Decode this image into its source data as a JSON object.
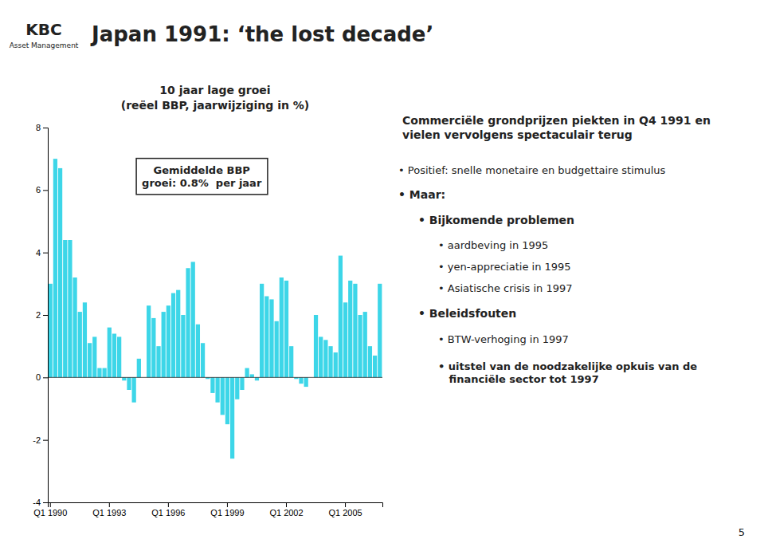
{
  "chart_data": {
    "type": "bar",
    "title": "Japan 1991: ‘the lost decade’",
    "subtitle": [
      "10 jaar lage groei",
      "(reëel BBP, jaarwijziging in %)"
    ],
    "categories": [
      "Q1 1990",
      null,
      null,
      null,
      null,
      null,
      null,
      null,
      null,
      null,
      null,
      null,
      "Q1 1993",
      null,
      null,
      null,
      null,
      null,
      null,
      null,
      null,
      null,
      null,
      null,
      "Q1 1996",
      null,
      null,
      null,
      null,
      null,
      null,
      null,
      null,
      null,
      null,
      null,
      "Q1 1999",
      null,
      null,
      null,
      null,
      null,
      null,
      null,
      null,
      null,
      null,
      null,
      "Q1 2002",
      null,
      null,
      null,
      null,
      null,
      null,
      null,
      null,
      null,
      null,
      null,
      "Q1 2005",
      null,
      null,
      null,
      null,
      null,
      null,
      null
    ],
    "values": [
      3.0,
      7.0,
      6.7,
      4.4,
      4.4,
      3.2,
      2.1,
      2.4,
      1.1,
      1.3,
      0.3,
      0.3,
      1.6,
      1.4,
      1.3,
      -0.1,
      -0.4,
      -0.8,
      0.6,
      0.0,
      2.3,
      1.9,
      1.0,
      2.1,
      2.3,
      2.7,
      2.8,
      2.0,
      3.5,
      3.7,
      1.7,
      1.1,
      -0.05,
      -0.5,
      -0.8,
      -1.2,
      -1.5,
      -2.6,
      -0.7,
      -0.4,
      0.3,
      0.1,
      -0.1,
      3.0,
      2.6,
      2.5,
      1.8,
      3.2,
      3.1,
      1.0,
      -0.05,
      -0.2,
      -0.3,
      0.0,
      2.0,
      1.3,
      1.2,
      1.0,
      0.8,
      3.9,
      2.4,
      3.1,
      3.0,
      2.0,
      2.1,
      1.0,
      0.7,
      3.0
    ],
    "color": "#3dd6e8",
    "ylim": [
      -4,
      8
    ],
    "yticks": [
      -4,
      -2,
      0,
      2,
      4,
      6,
      8
    ],
    "grid": false,
    "annotations": [
      "Gemiddelde BBP\ngroei: 0.8%  per jaar",
      "Commerciële grondprijzen piekten in Q4 1991 en\nvielen vervolgens spectaculair terug",
      "• Positief: snelle monetaire en budgettaire stimulus",
      "• Maar:",
      "• Bijkomende problemen",
      "• aardbeving in 1995",
      "• yen-appreciatie in 1995",
      "• Asiatische crisis in 1997",
      "• Beleidsfouten",
      "• BTW-verhoging in 1997",
      "• uitstel van de noodzakelijke opkuis van de\n   financiële sector tot 1997",
      "KBC",
      "Asset Management",
      "5"
    ]
  }
}
